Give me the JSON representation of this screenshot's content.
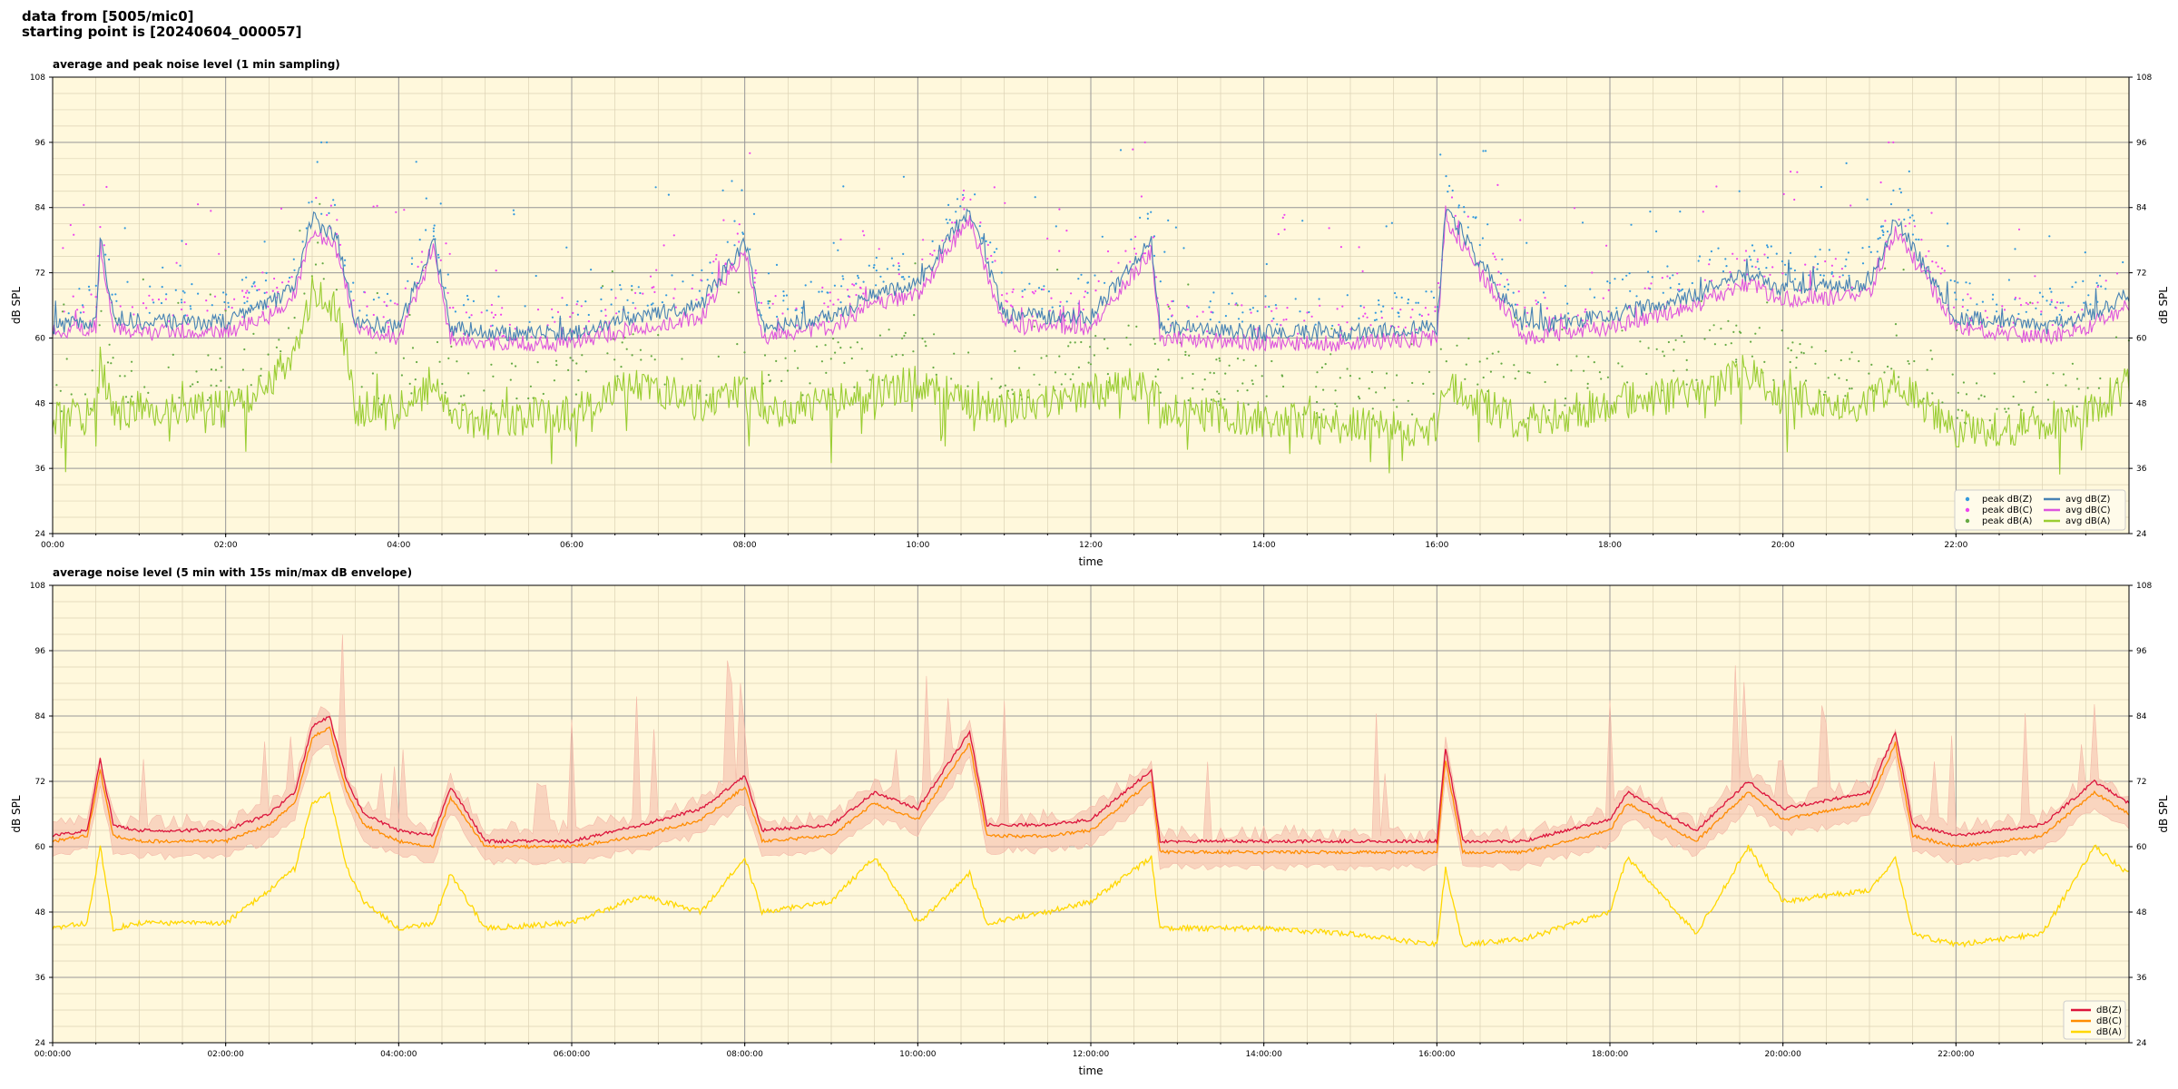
{
  "header": {
    "line1": "data from [5005/mic0]",
    "line2": "starting point is [20240604_000057]"
  },
  "colors": {
    "plot_bg": "#fff8dc",
    "grid_major": "#999999",
    "grid_minor": "#dcd2b4",
    "z": "#4682b4",
    "c": "#dd55dd",
    "a": "#9acd32",
    "z2": "#dc143c",
    "c2": "#ff8c00",
    "a2": "#ffd700",
    "envelope": "#f4b8a8"
  },
  "chart_data": [
    {
      "type": "line",
      "title": "average and peak noise level (1 min sampling)",
      "xlabel": "time",
      "ylabel": "dB SPL",
      "xlim": [
        0,
        24
      ],
      "ylim": [
        24,
        108
      ],
      "yticks": [
        24,
        36,
        48,
        60,
        72,
        84,
        96,
        108
      ],
      "xticks": [
        "00:00",
        "02:00",
        "04:00",
        "06:00",
        "08:00",
        "10:00",
        "12:00",
        "14:00",
        "16:00",
        "18:00",
        "20:00",
        "22:00"
      ],
      "grid": true,
      "legend": "bottom-right",
      "legend_items": [
        {
          "name": "peak dB(Z)",
          "kind": "dot",
          "color": "#3399dd"
        },
        {
          "name": "peak dB(C)",
          "kind": "dot",
          "color": "#ee44ee"
        },
        {
          "name": "peak dB(A)",
          "kind": "dot",
          "color": "#66aa44"
        },
        {
          "name": "avg dB(Z)",
          "kind": "line",
          "color": "#4682b4"
        },
        {
          "name": "avg dB(C)",
          "kind": "line",
          "color": "#dd55dd"
        },
        {
          "name": "avg dB(A)",
          "kind": "line",
          "color": "#9acd32"
        }
      ],
      "x_hours": [
        0,
        0.5,
        0.55,
        0.7,
        1.0,
        2.0,
        2.5,
        2.8,
        3.0,
        3.3,
        3.5,
        4.0,
        4.4,
        4.6,
        5.0,
        6.0,
        6.8,
        7.5,
        8.0,
        8.2,
        9.0,
        9.5,
        10.0,
        10.6,
        11.0,
        12.0,
        12.7,
        12.8,
        14.0,
        15.0,
        16.0,
        16.1,
        17.0,
        18.0,
        19.0,
        19.6,
        20.0,
        21.0,
        21.3,
        22.0,
        23.0,
        23.5,
        24.0
      ],
      "series": [
        {
          "name": "avg dB(Z)",
          "values": [
            62,
            63,
            79,
            64,
            63,
            63,
            66,
            70,
            82,
            78,
            63,
            62,
            78,
            62,
            61,
            61,
            64,
            66,
            78,
            62,
            64,
            68,
            70,
            84,
            64,
            64,
            78,
            62,
            61,
            61,
            62,
            84,
            62,
            64,
            68,
            72,
            69,
            70,
            82,
            64,
            62,
            64,
            68
          ]
        },
        {
          "name": "avg dB(C)",
          "values": [
            61,
            62,
            77,
            62,
            61,
            61,
            64,
            68,
            80,
            76,
            62,
            60,
            76,
            60,
            59,
            59,
            62,
            64,
            76,
            60,
            62,
            66,
            68,
            82,
            62,
            62,
            76,
            60,
            59,
            59,
            60,
            82,
            60,
            62,
            66,
            70,
            67,
            68,
            80,
            62,
            60,
            62,
            66
          ]
        },
        {
          "name": "avg dB(A)",
          "values": [
            45,
            46,
            56,
            46,
            47,
            47,
            52,
            56,
            68,
            66,
            47,
            46,
            52,
            45,
            45,
            46,
            52,
            48,
            50,
            46,
            48,
            50,
            52,
            48,
            47,
            50,
            52,
            47,
            45,
            44,
            43,
            52,
            44,
            48,
            50,
            54,
            49,
            48,
            52,
            43,
            44,
            46,
            52
          ]
        }
      ]
    },
    {
      "type": "line",
      "title": "average noise level (5 min with 15s min/max dB envelope)",
      "xlabel": "time",
      "ylabel": "dB SPL",
      "xlim": [
        0,
        24
      ],
      "ylim": [
        24,
        108
      ],
      "yticks": [
        24,
        36,
        48,
        60,
        72,
        84,
        96,
        108
      ],
      "xticks": [
        "00:00:00",
        "02:00:00",
        "04:00:00",
        "06:00:00",
        "08:00:00",
        "10:00:00",
        "12:00:00",
        "14:00:00",
        "16:00:00",
        "18:00:00",
        "20:00:00",
        "22:00:00"
      ],
      "grid": true,
      "legend": "bottom-right",
      "legend_items": [
        {
          "name": "dB(Z)",
          "kind": "line",
          "color": "#dc143c"
        },
        {
          "name": "dB(C)",
          "kind": "line",
          "color": "#ff8c00"
        },
        {
          "name": "dB(A)",
          "kind": "line",
          "color": "#ffd700"
        }
      ],
      "x_hours": [
        0,
        0.4,
        0.55,
        0.7,
        1.0,
        2.0,
        2.5,
        2.8,
        3.0,
        3.2,
        3.4,
        3.6,
        4.0,
        4.4,
        4.6,
        5.0,
        6.0,
        6.8,
        7.5,
        8.0,
        8.2,
        9.0,
        9.5,
        10.0,
        10.6,
        10.8,
        11.5,
        12.0,
        12.7,
        12.8,
        14.0,
        15.0,
        16.0,
        16.1,
        16.3,
        17.0,
        18.0,
        18.2,
        19.0,
        19.6,
        20.0,
        21.0,
        21.3,
        21.5,
        22.0,
        23.0,
        23.6,
        24.0
      ],
      "series": [
        {
          "name": "dB(Z)",
          "values": [
            62,
            63,
            76,
            64,
            63,
            63,
            66,
            70,
            82,
            84,
            72,
            66,
            63,
            62,
            71,
            61,
            61,
            64,
            67,
            73,
            63,
            64,
            70,
            67,
            81,
            64,
            64,
            65,
            74,
            61,
            61,
            61,
            61,
            78,
            61,
            61,
            65,
            70,
            63,
            72,
            67,
            70,
            81,
            64,
            62,
            64,
            72,
            68
          ]
        },
        {
          "name": "dB(C)",
          "values": [
            61,
            62,
            74,
            62,
            61,
            61,
            64,
            68,
            80,
            82,
            70,
            64,
            61,
            60,
            69,
            60,
            60,
            62,
            65,
            71,
            61,
            62,
            68,
            65,
            79,
            62,
            62,
            63,
            72,
            59,
            59,
            59,
            59,
            76,
            59,
            59,
            63,
            68,
            61,
            70,
            65,
            68,
            79,
            62,
            60,
            62,
            70,
            66
          ]
        },
        {
          "name": "dB(A)",
          "values": [
            45,
            46,
            60,
            45,
            46,
            46,
            52,
            56,
            68,
            70,
            56,
            50,
            45,
            46,
            55,
            45,
            46,
            51,
            48,
            58,
            48,
            50,
            58,
            46,
            55,
            46,
            48,
            50,
            58,
            45,
            45,
            44,
            42,
            56,
            42,
            43,
            48,
            58,
            44,
            60,
            50,
            52,
            58,
            44,
            42,
            44,
            60,
            55
          ]
        }
      ]
    }
  ]
}
